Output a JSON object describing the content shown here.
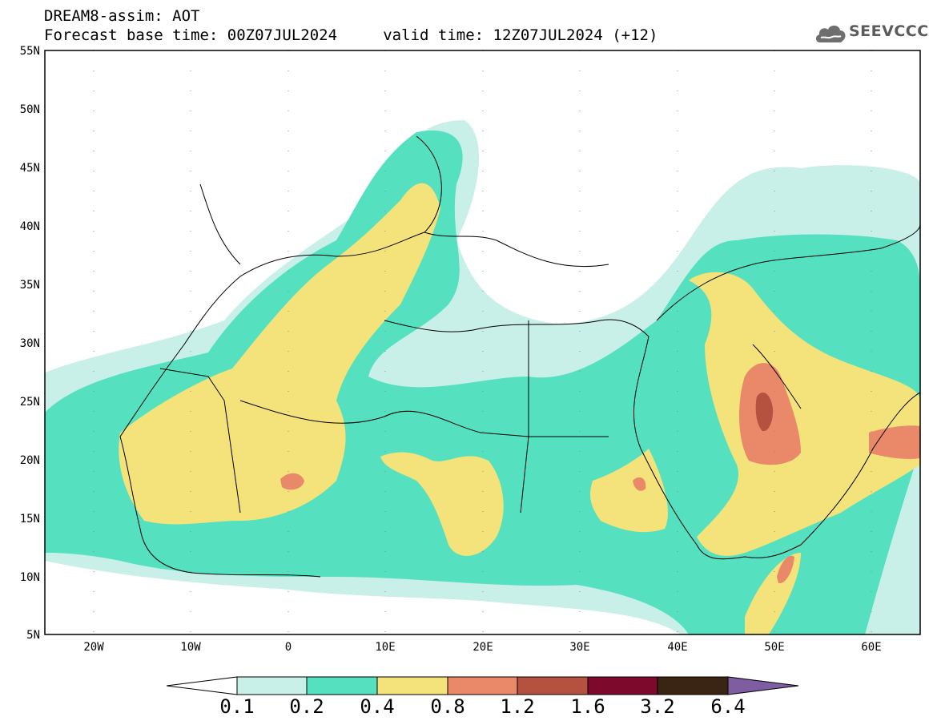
{
  "header": {
    "line1": "DREAM8-assim: AOT",
    "line2": "Forecast base time: 00Z07JUL2024     valid time: 12Z07JUL2024 (+12)"
  },
  "logo": {
    "text": "SEEVCCC",
    "icon": "cloud-icon"
  },
  "map": {
    "lat_labels": [
      "55N",
      "50N",
      "45N",
      "40N",
      "35N",
      "30N",
      "25N",
      "20N",
      "15N",
      "10N",
      "5N"
    ],
    "lon_labels": [
      "20W",
      "10W",
      "0",
      "10E",
      "20E",
      "30E",
      "40E",
      "50E",
      "60E"
    ],
    "extent": {
      "lon": [
        -25,
        65
      ],
      "lat": [
        5,
        55
      ]
    }
  },
  "colorbar": {
    "labels": [
      "0.1",
      "0.2",
      "0.4",
      "0.8",
      "1.2",
      "1.6",
      "3.2",
      "6.4"
    ],
    "colors": [
      "#ffffff",
      "#c9efe9",
      "#55e0bf",
      "#f4e37a",
      "#e9896a",
      "#b5513f",
      "#7d0a2c",
      "#3a2414",
      "#7e5ea0"
    ]
  },
  "chart_data": {
    "type": "heatmap",
    "title": "DREAM8-assim: AOT",
    "variable": "AOT",
    "base_time": "00Z07JUL2024",
    "valid_time": "12Z07JUL2024",
    "lead_hours": 12,
    "levels": [
      0.1,
      0.2,
      0.4,
      0.8,
      1.2,
      1.6,
      3.2,
      6.4
    ]
  }
}
